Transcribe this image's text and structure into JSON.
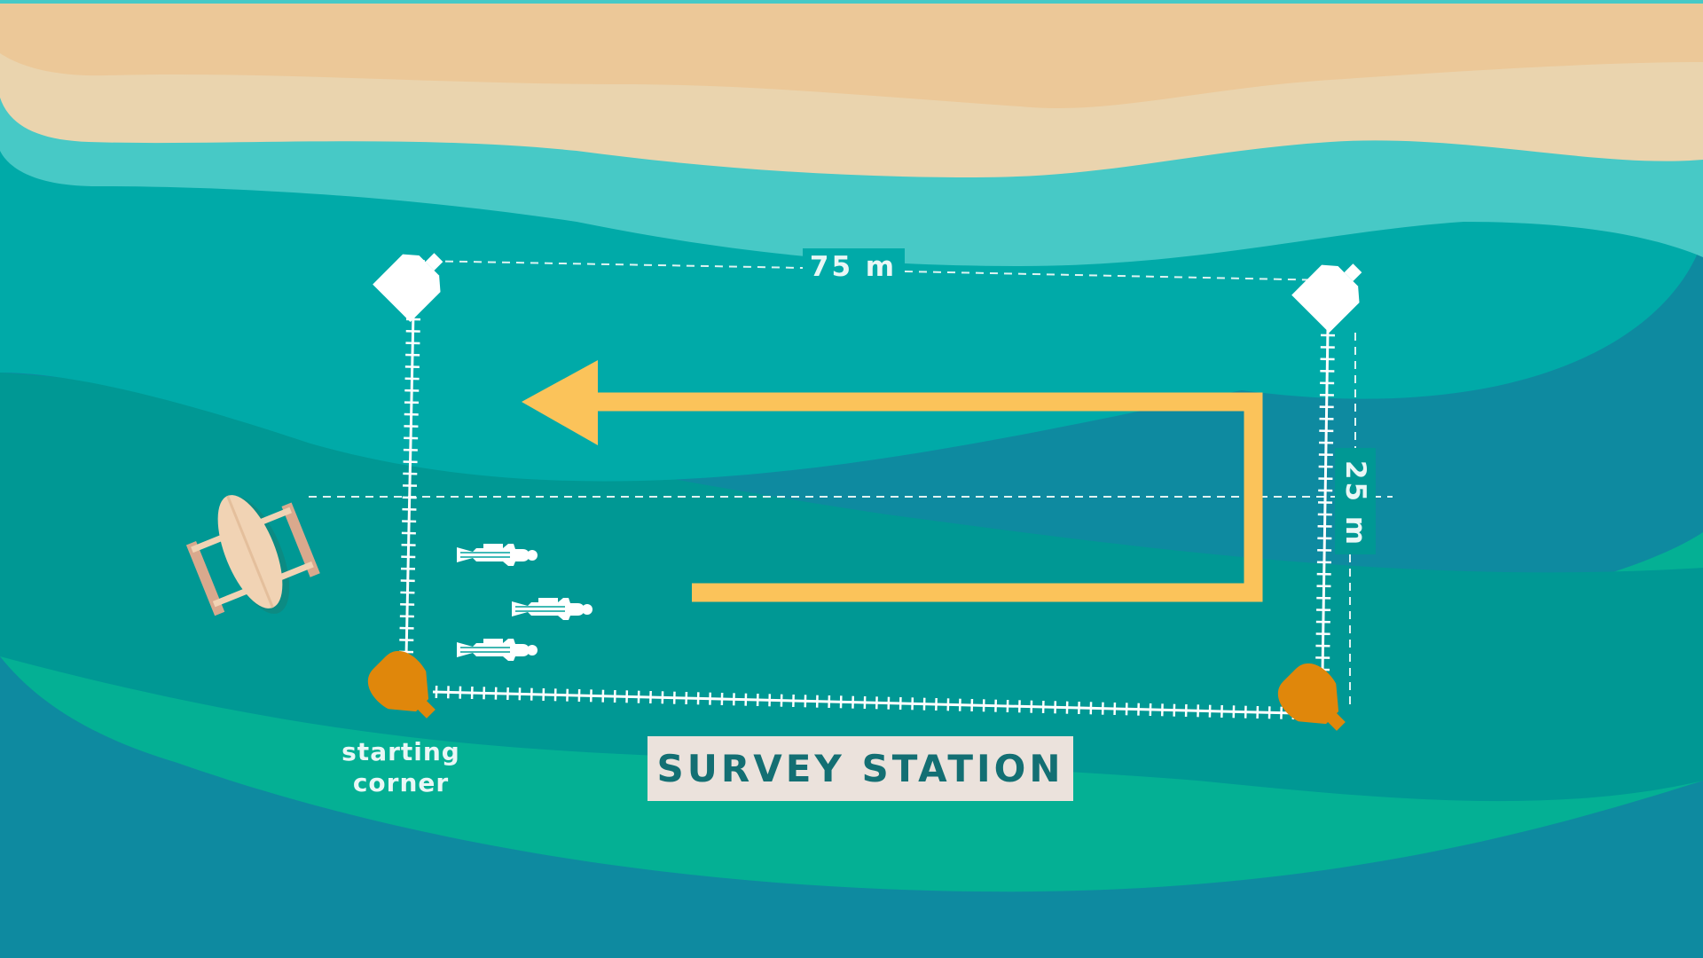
{
  "title": "SURVEY STATION",
  "labels": {
    "width": "75 m",
    "height": "25 m",
    "start_line1": "starting",
    "start_line2": "corner"
  },
  "colors": {
    "sand_dark": "#ecc898",
    "sand_light": "#ead4ae",
    "surf": "#47c9c6",
    "shallow": "#00aaa8",
    "mid": "#009894",
    "reef": "#04b094",
    "deep": "#0e8aa0",
    "route": "#fbc35a",
    "buoy_orange": "#e0870b",
    "buoy_white": "#ffffff",
    "boat": "#f1d3b4",
    "station_bg": "#ebe2dc"
  },
  "icons": [
    "buoy-white-icon",
    "buoy-orange-icon",
    "diver-icon",
    "boat-icon",
    "route-arrow-icon"
  ]
}
